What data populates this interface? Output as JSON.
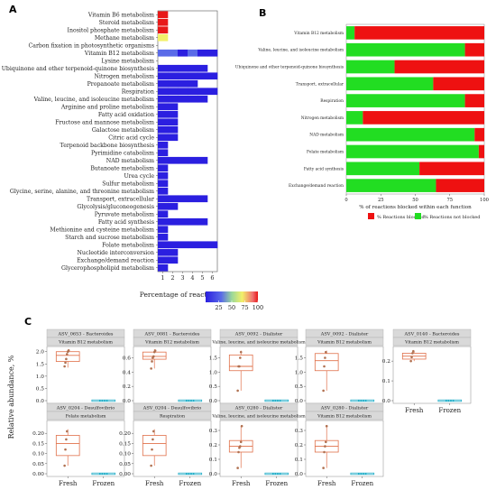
{
  "panels": {
    "A": "A",
    "B": "B",
    "C": "C"
  },
  "chart_data": [
    {
      "panel": "A",
      "type": "heatmap",
      "rows": [
        "Vitamin B6 metabolism",
        "Steroid metabolism",
        "Inositol phosphate metabolism",
        "Methane metabolism",
        "Carbon fixation in photosynthetic organisms",
        "Vitamin B12 metabolism",
        "Lysine metabolism",
        "Ubiquinone and other terpenoid-quinone biosynthesis",
        "Nitrogen metabolism",
        "Propanoate metabolism",
        "Respiration",
        "Valine, leucine, and isoleucine metabolism",
        "Arginine and proline metabolism",
        "Fatty acid oxidation",
        "Fructose and mannose metabolism",
        "Galactose metabolism",
        "Citric acid cycle",
        "Terpenoid backbone biosynthesis",
        "Pyrimidine catabolism",
        "NAD metabolism",
        "Butanoate metabolism",
        "Urea cycle",
        "Sulfur metabolism",
        "Glycine, serine, alanine, and threonine metabolism",
        "Transport, extracellular",
        "Glycolysis/gluconeogenesis",
        "Pyruvate metabolism",
        "Fatty acid synthesis",
        "Methionine and cysteine metabolism",
        "Starch and sucrose metabolism",
        "Folate metabolism",
        "Nucleotide interconversion",
        "Exchange/demand reaction",
        "Glycerophospholipid metabolism"
      ],
      "columns": [
        "1",
        "2",
        "3",
        "4",
        "5",
        "6"
      ],
      "values": [
        [
          100,
          null,
          null,
          null,
          null,
          null
        ],
        [
          100,
          null,
          null,
          null,
          null,
          null
        ],
        [
          100,
          null,
          null,
          null,
          null,
          null
        ],
        [
          70,
          null,
          null,
          null,
          null,
          null
        ],
        [
          null,
          null,
          null,
          null,
          null,
          null
        ],
        [
          45,
          40,
          25,
          30,
          25,
          20
        ],
        [
          null,
          null,
          null,
          null,
          null,
          null
        ],
        [
          20,
          18,
          15,
          10,
          12,
          null
        ],
        [
          20,
          20,
          10,
          10,
          10,
          10
        ],
        [
          20,
          10,
          5,
          5,
          null,
          null
        ],
        [
          5,
          5,
          5,
          5,
          5,
          3
        ],
        [
          5,
          5,
          5,
          5,
          5,
          null
        ],
        [
          5,
          5,
          null,
          null,
          null,
          null
        ],
        [
          5,
          5,
          null,
          null,
          null,
          null
        ],
        [
          5,
          5,
          null,
          null,
          null,
          null
        ],
        [
          10,
          10,
          null,
          null,
          null,
          null
        ],
        [
          5,
          5,
          null,
          null,
          null,
          null
        ],
        [
          5,
          null,
          null,
          null,
          null,
          null
        ],
        [
          5,
          null,
          null,
          null,
          null,
          null
        ],
        [
          5,
          5,
          5,
          5,
          5,
          null
        ],
        [
          5,
          null,
          null,
          null,
          null,
          null
        ],
        [
          5,
          null,
          null,
          null,
          null,
          null
        ],
        [
          5,
          null,
          null,
          null,
          null,
          null
        ],
        [
          5,
          null,
          null,
          null,
          null,
          null
        ],
        [
          5,
          5,
          5,
          5,
          5,
          null
        ],
        [
          5,
          5,
          null,
          null,
          null,
          null
        ],
        [
          5,
          null,
          null,
          null,
          null,
          null
        ],
        [
          5,
          5,
          5,
          5,
          5,
          null
        ],
        [
          5,
          null,
          null,
          null,
          null,
          null
        ],
        [
          5,
          null,
          null,
          null,
          null,
          null
        ],
        [
          5,
          5,
          5,
          5,
          5,
          5
        ],
        [
          5,
          5,
          null,
          null,
          null,
          null
        ],
        [
          5,
          5,
          null,
          null,
          null,
          null
        ],
        [
          5,
          null,
          null,
          null,
          null,
          null
        ]
      ],
      "colorbar": {
        "title": "Percentage of reactions lost",
        "ticks": [
          "25",
          "50",
          "75",
          "100"
        ],
        "range": [
          0,
          100
        ]
      },
      "colors": [
        "#2B1FE0",
        "#5A6BE8",
        "#9AD89A",
        "#F2F06A",
        "#F07070",
        "#E81818"
      ]
    },
    {
      "panel": "B",
      "type": "bar",
      "orientation": "horizontal",
      "stacked": true,
      "categories": [
        "Vitamin B12 metabolism",
        "Valine, leucine, and isoleucine metabolism",
        "Ubiquinone and other terpenoid-quinone biosynthesis",
        "Transport, extracellular",
        "Respiration",
        "Nitrogen metabolism",
        "NAD metabolism",
        "Folate metabolism",
        "Fatty acid synthesis",
        "Exchange/demand reaction"
      ],
      "series": [
        {
          "name": "% Reactions not blocked",
          "values": [
            6,
            86,
            35,
            63,
            86,
            12,
            93,
            96,
            53,
            65
          ],
          "color": "#22DD22"
        },
        {
          "name": "% Reactions blocked",
          "values": [
            94,
            14,
            65,
            37,
            14,
            88,
            7,
            4,
            47,
            35
          ],
          "color": "#EE1111"
        }
      ],
      "xlabel": "% of reactions blocked within each function",
      "xlim": [
        0,
        100
      ],
      "xticks": [
        "0",
        "25",
        "50",
        "75",
        "100"
      ],
      "legend_position": "bottom"
    },
    {
      "panel": "C",
      "type": "scatter",
      "subtype": "boxplot",
      "ylabel": "Relative abundance, %",
      "groups": [
        "Fresh",
        "Frozen"
      ],
      "facets": [
        {
          "title": "ASV_0653 - Bacteroides",
          "subtitle": "Vitamin B12 metabolism",
          "yticks": [
            "0.0",
            "0.5",
            "1.0",
            "1.5",
            "2.0"
          ],
          "ylim": [
            0,
            2.1
          ],
          "fresh": {
            "q1": 1.6,
            "median": 1.85,
            "q3": 2.0,
            "min": 1.35,
            "max": 2.05,
            "points": [
              1.4,
              1.55,
              1.7,
              1.9,
              2.0,
              2.05
            ]
          },
          "frozen": {
            "value": 0.0
          }
        },
        {
          "title": "ASV_0081 - Bacteroides",
          "subtitle": "Vitamin B12 metabolism",
          "yticks": [
            "0.0",
            "0.2",
            "0.4",
            "0.6"
          ],
          "ylim": [
            0,
            0.72
          ],
          "fresh": {
            "q1": 0.58,
            "median": 0.62,
            "q3": 0.68,
            "min": 0.45,
            "max": 0.72,
            "points": [
              0.45,
              0.55,
              0.6,
              0.62,
              0.68,
              0.7
            ]
          },
          "frozen": {
            "value": 0.0
          }
        },
        {
          "title": "ASV_0092 - Dialister",
          "subtitle": "Valine, leucine, and isoleucine metabolism",
          "yticks": [
            "0.0",
            "0.5",
            "1.0",
            "1.5"
          ],
          "ylim": [
            0,
            1.8
          ],
          "fresh": {
            "q1": 1.05,
            "median": 1.2,
            "q3": 1.6,
            "min": 0.35,
            "max": 1.75,
            "points": [
              0.35,
              1.2,
              1.2,
              1.5,
              1.7
            ]
          },
          "frozen": {
            "value": 0.0
          }
        },
        {
          "title": "ASV_0092 - Dialister",
          "subtitle": "Vitamin B12 metabolism",
          "yticks": [
            "0.0",
            "0.5",
            "1.0",
            "1.5"
          ],
          "ylim": [
            0,
            1.8
          ],
          "fresh": {
            "q1": 1.05,
            "median": 1.4,
            "q3": 1.65,
            "min": 0.35,
            "max": 1.75,
            "points": [
              0.35,
              1.2,
              1.5,
              1.7
            ]
          },
          "frozen": {
            "value": 0.0
          }
        },
        {
          "title": "ASV_0140 - Bacteroides",
          "subtitle": "Vitamin B12 metabolism",
          "yticks": [
            "0.0",
            "0.1",
            "0.2"
          ],
          "ylim": [
            0,
            0.26
          ],
          "fresh": {
            "q1": 0.21,
            "median": 0.225,
            "q3": 0.24,
            "min": 0.2,
            "max": 0.25,
            "points": [
              0.2,
              0.22,
              0.24,
              0.25
            ]
          },
          "frozen": {
            "value": 0.0
          }
        },
        {
          "title": "ASV_0204 - Desulfovibrio",
          "subtitle": "Folate metabolism",
          "yticks": [
            "0.00",
            "0.05",
            "0.10",
            "0.15",
            "0.20"
          ],
          "ylim": [
            0,
            0.25
          ],
          "fresh": {
            "q1": 0.09,
            "median": 0.15,
            "q3": 0.19,
            "min": 0.04,
            "max": 0.22,
            "points": [
              0.04,
              0.12,
              0.17,
              0.21
            ]
          },
          "frozen": {
            "value": 0.0
          }
        },
        {
          "title": "ASV_0204 - Desulfovibrio",
          "subtitle": "Respiration",
          "yticks": [
            "0.00",
            "0.05",
            "0.10",
            "0.15",
            "0.20"
          ],
          "ylim": [
            0,
            0.25
          ],
          "fresh": {
            "q1": 0.09,
            "median": 0.15,
            "q3": 0.19,
            "min": 0.04,
            "max": 0.22,
            "points": [
              0.04,
              0.12,
              0.17,
              0.21
            ]
          },
          "frozen": {
            "value": 0.0
          }
        },
        {
          "title": "ASV_0280 - Dialister",
          "subtitle": "Valine, leucine, and isoleucine metabolism",
          "yticks": [
            "0.0",
            "0.1",
            "0.2",
            "0.3"
          ],
          "ylim": [
            0,
            0.35
          ],
          "fresh": {
            "q1": 0.15,
            "median": 0.19,
            "q3": 0.23,
            "min": 0.04,
            "max": 0.33,
            "points": [
              0.04,
              0.15,
              0.18,
              0.19,
              0.22,
              0.33
            ]
          },
          "frozen": {
            "value": 0.0
          }
        },
        {
          "title": "ASV_0280 - Dialister",
          "subtitle": "Vitamin B12 metabolism",
          "yticks": [
            "0.0",
            "0.1",
            "0.2",
            "0.3"
          ],
          "ylim": [
            0,
            0.35
          ],
          "fresh": {
            "q1": 0.15,
            "median": 0.19,
            "q3": 0.23,
            "min": 0.04,
            "max": 0.33,
            "points": [
              0.04,
              0.15,
              0.19,
              0.22,
              0.33
            ]
          },
          "frozen": {
            "value": 0.0
          }
        }
      ],
      "colors": {
        "fresh_box": "#E0704A",
        "frozen_box": "#22AEC8",
        "point": "#B07050"
      }
    }
  ]
}
